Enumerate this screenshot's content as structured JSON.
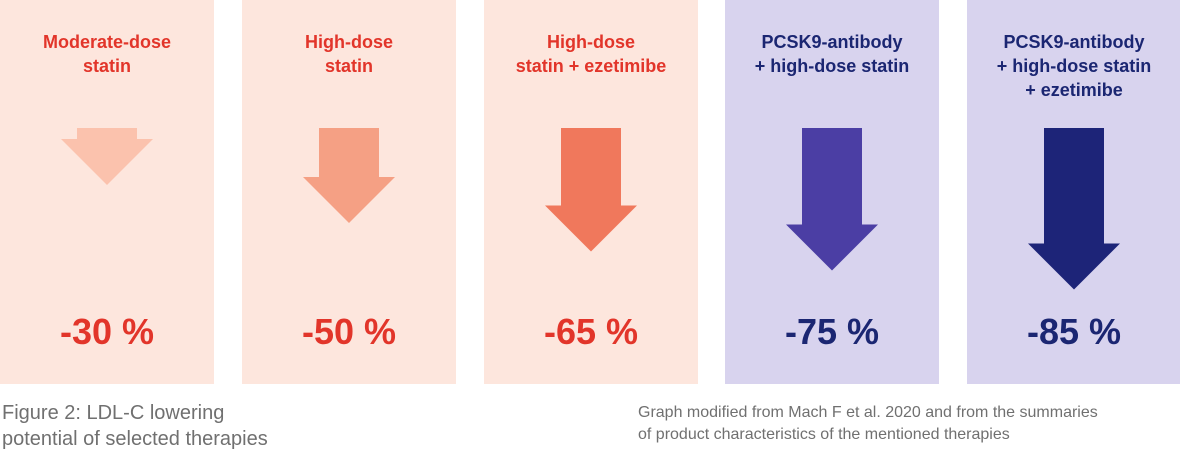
{
  "chart_data": {
    "type": "bar",
    "categories": [
      "Moderate-dose\nstatin",
      "High-dose\nstatin",
      "High-dose\nstatin + ezetimibe",
      "PCSK9-antibody\n+ high-dose statin",
      "PCSK9-antibody\n+ high-dose statin\n+ ezetimibe"
    ],
    "values": [
      -30,
      -50,
      -65,
      -75,
      -85
    ],
    "value_labels": [
      "-30 %",
      "-50 %",
      "-65 %",
      "-75 %",
      "-85 %"
    ],
    "title": "",
    "xlabel": "",
    "ylabel": "",
    "ylim": [
      -100,
      0
    ],
    "grid": false,
    "colors": {
      "panel_backgrounds": [
        "#fde6dd",
        "#fde6dd",
        "#fde6dd",
        "#d8d3ee",
        "#d8d3ee"
      ],
      "arrows": [
        "#fbc2ad",
        "#f5a084",
        "#f0785c",
        "#4b3ea4",
        "#1d2478"
      ],
      "text": [
        "#e2352a",
        "#e2352a",
        "#e2352a",
        "#1b2672",
        "#1b2672"
      ]
    }
  },
  "captions": {
    "figure": "Figure 2: LDL-C lowering\npotential of selected therapies",
    "source": "Graph modified from Mach F et al. 2020 and from the summaries\nof product characteristics of the mentioned therapies"
  }
}
